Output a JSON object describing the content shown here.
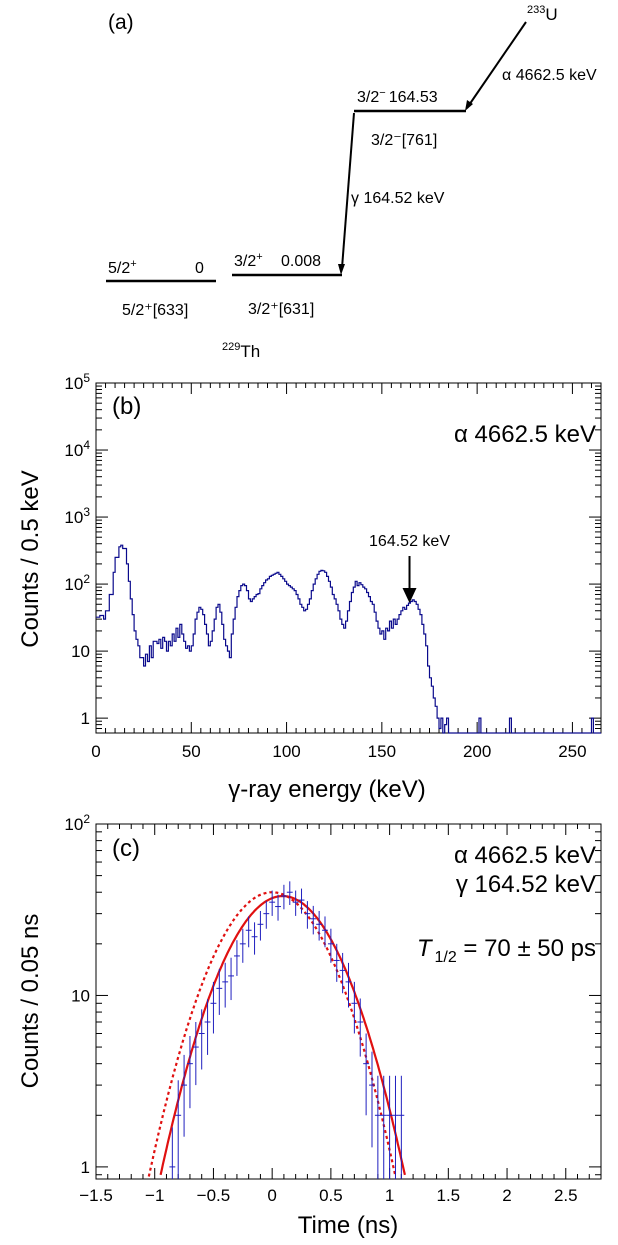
{
  "level_scheme": {
    "panel_label": "(a)",
    "parent": {
      "mass": "233",
      "symbol": "U"
    },
    "daughter": {
      "mass": "229",
      "symbol": "Th"
    },
    "alpha_label": "α 4662.5 keV",
    "gamma_label": "γ 164.52 keV",
    "levels": [
      {
        "spin": "5/2",
        "parity": "+",
        "energy": "0",
        "nilsson": "5/2⁺[633]"
      },
      {
        "spin": "3/2",
        "parity": "+",
        "energy": "0.008",
        "nilsson": "3/2⁺[631]"
      },
      {
        "spin": "3/2",
        "parity": "−",
        "energy": "164.53",
        "nilsson": "3/2⁻[761]"
      }
    ]
  },
  "chart_data": [
    {
      "type": "histogram",
      "panel_label": "(b)",
      "annotation": "α 4662.5 keV",
      "peak_label": "164.52 keV",
      "peak_x": 164.52,
      "xlabel": "γ-ray energy (keV)",
      "ylabel": "Counts / 0.5 keV",
      "xlim": [
        0,
        265
      ],
      "ylim": [
        0.6,
        100000
      ],
      "ylog": true,
      "line_color": "#0a0a8c",
      "xticks": [
        0,
        50,
        100,
        150,
        200,
        250
      ],
      "yticks": [
        {
          "value": 1,
          "base": "1",
          "exp": ""
        },
        {
          "value": 10,
          "base": "10",
          "exp": ""
        },
        {
          "value": 100,
          "base": "10",
          "exp": "2"
        },
        {
          "value": 1000,
          "base": "10",
          "exp": "3"
        },
        {
          "value": 10000,
          "base": "10",
          "exp": "4"
        },
        {
          "value": 100000,
          "base": "10",
          "exp": "5"
        }
      ],
      "spectrum": [
        [
          0,
          32
        ],
        [
          2,
          34
        ],
        [
          4,
          30
        ],
        [
          5,
          40
        ],
        [
          7,
          70
        ],
        [
          9,
          150
        ],
        [
          10,
          250
        ],
        [
          12,
          360
        ],
        [
          13,
          380
        ],
        [
          14,
          340
        ],
        [
          16,
          200
        ],
        [
          17,
          110
        ],
        [
          18,
          60
        ],
        [
          19,
          35
        ],
        [
          20,
          20
        ],
        [
          21,
          15
        ],
        [
          22,
          12
        ],
        [
          23,
          8
        ],
        [
          24,
          8
        ],
        [
          25,
          6
        ],
        [
          26,
          9
        ],
        [
          27,
          7
        ],
        [
          28,
          12
        ],
        [
          29,
          8
        ],
        [
          30,
          14
        ],
        [
          32,
          13
        ],
        [
          33,
          15
        ],
        [
          34,
          11
        ],
        [
          35,
          16
        ],
        [
          36,
          14
        ],
        [
          37,
          10
        ],
        [
          38,
          14
        ],
        [
          39,
          12
        ],
        [
          40,
          18
        ],
        [
          41,
          14
        ],
        [
          42,
          22
        ],
        [
          43,
          16
        ],
        [
          44,
          25
        ],
        [
          45,
          18
        ],
        [
          46,
          14
        ],
        [
          47,
          11
        ],
        [
          48,
          12
        ],
        [
          49,
          10
        ],
        [
          50,
          12
        ],
        [
          51,
          18
        ],
        [
          52,
          30
        ],
        [
          53,
          38
        ],
        [
          54,
          45
        ],
        [
          55,
          42
        ],
        [
          56,
          35
        ],
        [
          57,
          25
        ],
        [
          58,
          18
        ],
        [
          59,
          12
        ],
        [
          60,
          14
        ],
        [
          61,
          20
        ],
        [
          62,
          30
        ],
        [
          63,
          45
        ],
        [
          64,
          50
        ],
        [
          65,
          38
        ],
        [
          66,
          25
        ],
        [
          67,
          15
        ],
        [
          68,
          12
        ],
        [
          69,
          10
        ],
        [
          70,
          8
        ],
        [
          71,
          18
        ],
        [
          72,
          30
        ],
        [
          73,
          45
        ],
        [
          74,
          65
        ],
        [
          75,
          80
        ],
        [
          76,
          95
        ],
        [
          77,
          100
        ],
        [
          78,
          95
        ],
        [
          79,
          80
        ],
        [
          80,
          60
        ],
        [
          81,
          55
        ],
        [
          82,
          60
        ],
        [
          83,
          65
        ],
        [
          84,
          70
        ],
        [
          85,
          72
        ],
        [
          86,
          85
        ],
        [
          87,
          95
        ],
        [
          88,
          105
        ],
        [
          89,
          115
        ],
        [
          90,
          120
        ],
        [
          91,
          130
        ],
        [
          92,
          135
        ],
        [
          93,
          140
        ],
        [
          94,
          145
        ],
        [
          95,
          150
        ],
        [
          96,
          140
        ],
        [
          97,
          130
        ],
        [
          98,
          120
        ],
        [
          99,
          110
        ],
        [
          100,
          100
        ],
        [
          101,
          95
        ],
        [
          102,
          90
        ],
        [
          103,
          85
        ],
        [
          104,
          80
        ],
        [
          105,
          70
        ],
        [
          106,
          60
        ],
        [
          107,
          50
        ],
        [
          108,
          45
        ],
        [
          109,
          40
        ],
        [
          110,
          42
        ],
        [
          111,
          50
        ],
        [
          112,
          60
        ],
        [
          113,
          80
        ],
        [
          114,
          100
        ],
        [
          115,
          120
        ],
        [
          116,
          140
        ],
        [
          117,
          155
        ],
        [
          118,
          160
        ],
        [
          119,
          158
        ],
        [
          120,
          150
        ],
        [
          121,
          130
        ],
        [
          122,
          110
        ],
        [
          123,
          90
        ],
        [
          124,
          70
        ],
        [
          125,
          60
        ],
        [
          126,
          50
        ],
        [
          127,
          40
        ],
        [
          128,
          30
        ],
        [
          129,
          25
        ],
        [
          130,
          22
        ],
        [
          131,
          28
        ],
        [
          132,
          40
        ],
        [
          133,
          55
        ],
        [
          134,
          75
        ],
        [
          135,
          90
        ],
        [
          136,
          110
        ],
        [
          137,
          95
        ],
        [
          138,
          105
        ],
        [
          139,
          98
        ],
        [
          140,
          90
        ],
        [
          141,
          85
        ],
        [
          142,
          75
        ],
        [
          143,
          65
        ],
        [
          144,
          55
        ],
        [
          145,
          50
        ],
        [
          146,
          38
        ],
        [
          147,
          28
        ],
        [
          148,
          22
        ],
        [
          149,
          18
        ],
        [
          150,
          20
        ],
        [
          151,
          15
        ],
        [
          152,
          22
        ],
        [
          153,
          20
        ],
        [
          154,
          28
        ],
        [
          155,
          22
        ],
        [
          156,
          30
        ],
        [
          157,
          25
        ],
        [
          158,
          30
        ],
        [
          159,
          35
        ],
        [
          160,
          40
        ],
        [
          161,
          45
        ],
        [
          162,
          42
        ],
        [
          163,
          48
        ],
        [
          164,
          52
        ],
        [
          165,
          55
        ],
        [
          166,
          58
        ],
        [
          167,
          55
        ],
        [
          168,
          50
        ],
        [
          169,
          42
        ],
        [
          170,
          35
        ],
        [
          171,
          25
        ],
        [
          172,
          18
        ],
        [
          173,
          12
        ],
        [
          174,
          6
        ],
        [
          175,
          4
        ],
        [
          176,
          3
        ],
        [
          177,
          2
        ],
        [
          178,
          1.5
        ],
        [
          179,
          1
        ],
        [
          180,
          0.7
        ],
        [
          181,
          1
        ],
        [
          182,
          0.6
        ],
        [
          183,
          0.8
        ],
        [
          184,
          1
        ],
        [
          185,
          0.6
        ],
        [
          200,
          0.6
        ],
        [
          201,
          1
        ],
        [
          202,
          0.6
        ],
        [
          216,
          0.6
        ],
        [
          217,
          1
        ],
        [
          218,
          0.6
        ],
        [
          259,
          0.6
        ],
        [
          260,
          1
        ],
        [
          261,
          0.6
        ],
        [
          265,
          0.6
        ]
      ]
    },
    {
      "type": "scatter",
      "panel_label": "(c)",
      "annotations": [
        "α 4662.5 keV",
        "γ 164.52 keV"
      ],
      "halflife_label": {
        "symbol": "T",
        "subscript": "1/2",
        "value": " = 70 ± 50 ps"
      },
      "xlabel": "Time (ns)",
      "ylabel": "Counts / 0.05 ns",
      "xlim": [
        -1.5,
        2.8
      ],
      "ylim": [
        0.85,
        100
      ],
      "ylog": true,
      "point_color": "#1f1fbf",
      "fit_color": "#e01010",
      "xticks": [
        {
          "value": -1.5,
          "label": "−1.5"
        },
        {
          "value": -1,
          "label": "−1"
        },
        {
          "value": -0.5,
          "label": "−0.5"
        },
        {
          "value": 0,
          "label": "0"
        },
        {
          "value": 0.5,
          "label": "0.5"
        },
        {
          "value": 1,
          "label": "1"
        },
        {
          "value": 1.5,
          "label": "1.5"
        },
        {
          "value": 2,
          "label": "2"
        },
        {
          "value": 2.5,
          "label": "2.5"
        }
      ],
      "yticks": [
        {
          "value": 1,
          "base": "1",
          "exp": ""
        },
        {
          "value": 10,
          "base": "10",
          "exp": ""
        },
        {
          "value": 100,
          "base": "10",
          "exp": "2"
        }
      ],
      "points": [
        [
          -0.85,
          1,
          0.7
        ],
        [
          -0.8,
          2,
          1.2
        ],
        [
          -0.75,
          3,
          1.5
        ],
        [
          -0.7,
          4,
          1.8
        ],
        [
          -0.65,
          5,
          2.0
        ],
        [
          -0.6,
          6,
          2.3
        ],
        [
          -0.55,
          7,
          2.5
        ],
        [
          -0.5,
          9,
          3.0
        ],
        [
          -0.45,
          11,
          3.3
        ],
        [
          -0.4,
          12,
          3.5
        ],
        [
          -0.35,
          13,
          3.6
        ],
        [
          -0.3,
          17,
          4.0
        ],
        [
          -0.25,
          20,
          4.5
        ],
        [
          -0.2,
          24,
          4.9
        ],
        [
          -0.15,
          22,
          4.7
        ],
        [
          -0.1,
          26,
          5.1
        ],
        [
          -0.05,
          30,
          5.5
        ],
        [
          0,
          35,
          5.9
        ],
        [
          0.05,
          33,
          5.7
        ],
        [
          0.1,
          38,
          6.2
        ],
        [
          0.15,
          40,
          6.3
        ],
        [
          0.2,
          35,
          5.9
        ],
        [
          0.25,
          36,
          6.0
        ],
        [
          0.3,
          30,
          5.5
        ],
        [
          0.35,
          28,
          5.3
        ],
        [
          0.4,
          26,
          5.1
        ],
        [
          0.45,
          24,
          4.9
        ],
        [
          0.5,
          20,
          4.5
        ],
        [
          0.55,
          16,
          4.0
        ],
        [
          0.6,
          14,
          3.7
        ],
        [
          0.65,
          12,
          3.5
        ],
        [
          0.7,
          9,
          3.0
        ],
        [
          0.75,
          7,
          2.6
        ],
        [
          0.8,
          4,
          2.0
        ],
        [
          0.85,
          3,
          1.7
        ],
        [
          0.9,
          2,
          1.4
        ],
        [
          0.95,
          2,
          1.4
        ],
        [
          1.0,
          2,
          1.4
        ],
        [
          1.05,
          2,
          1.4
        ],
        [
          1.1,
          2,
          1.4
        ]
      ],
      "fit_solid": {
        "amplitude": 38,
        "center": 0.09,
        "sigma": 0.38
      },
      "fit_dashed": {
        "amplitude": 40,
        "center": 0.0,
        "sigma": 0.38
      }
    }
  ]
}
